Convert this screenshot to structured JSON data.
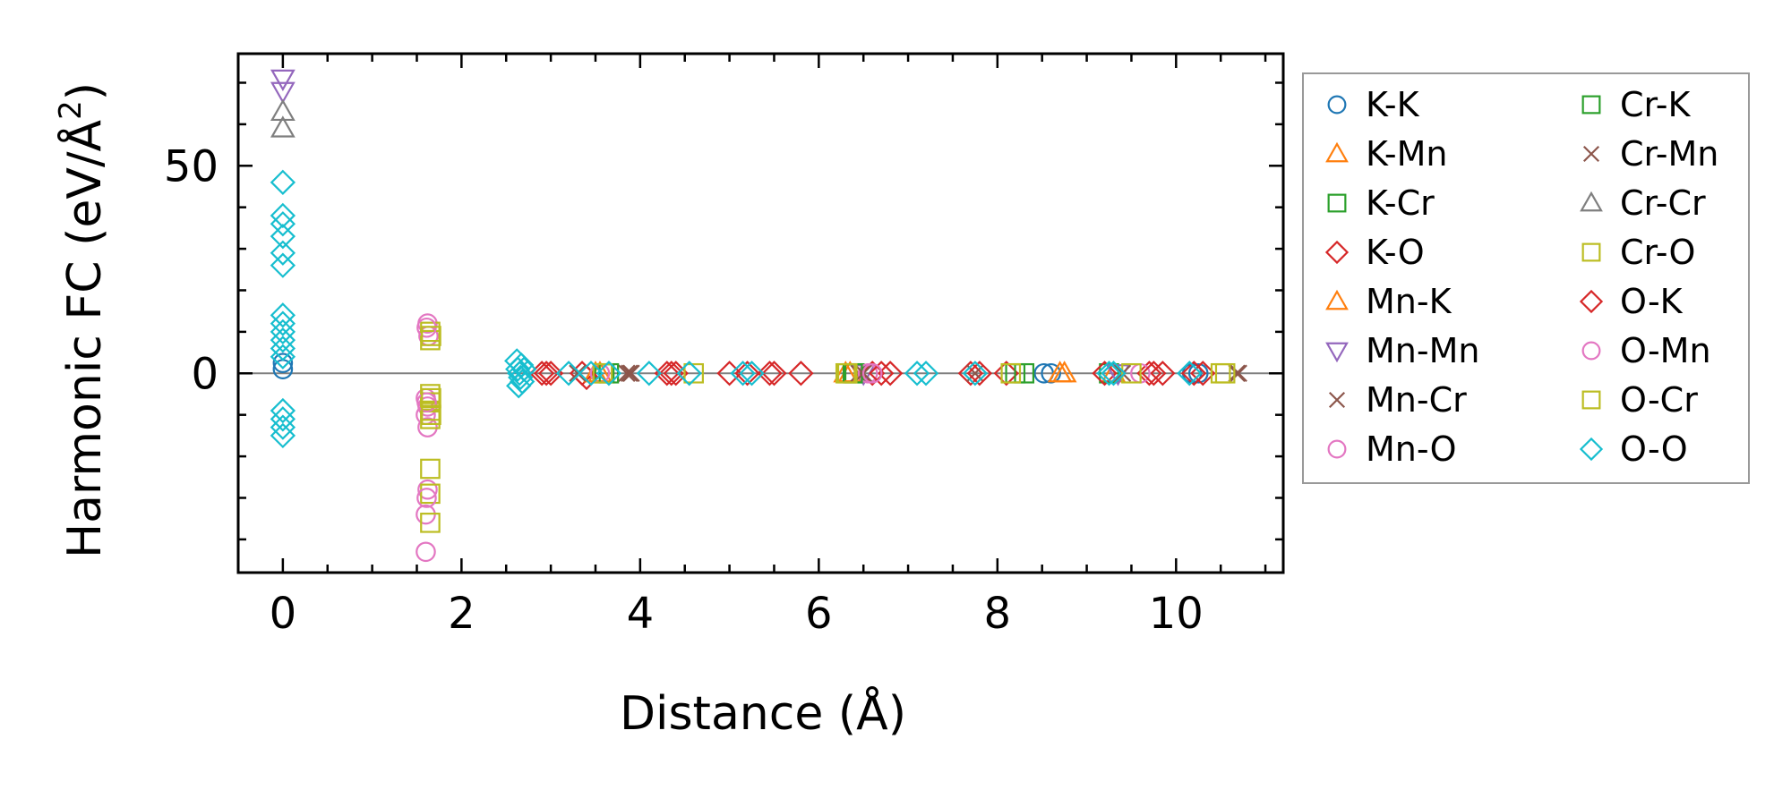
{
  "chart_data": {
    "type": "scatter",
    "xlabel": "Distance (Å)",
    "ylabel_main": "Harmonic FC (eV/Å",
    "ylabel_sup": "2",
    "ylabel_close": ")",
    "xlim": [
      -0.5,
      11.2
    ],
    "ylim": [
      -48,
      77
    ],
    "xticks": [
      0,
      2,
      4,
      6,
      8,
      10
    ],
    "xtick_labels": [
      "0",
      "2",
      "4",
      "6",
      "8",
      "10"
    ],
    "yticks": [
      0,
      50
    ],
    "ytick_labels": [
      "0",
      "50"
    ],
    "minor_x_step": 0.5,
    "minor_y_step": 10,
    "zero_line": true,
    "legend_position": "outside-right",
    "series": [
      {
        "name": "K-K",
        "marker": "circle",
        "color": "#1f77b4",
        "points": [
          [
            0,
            1
          ],
          [
            0,
            2.5
          ],
          [
            8.52,
            0
          ],
          [
            8.6,
            0
          ],
          [
            10.18,
            0
          ],
          [
            10.25,
            0
          ]
        ]
      },
      {
        "name": "K-Mn",
        "marker": "triangle-up",
        "color": "#ff7f0e",
        "points": [
          [
            3.55,
            0
          ],
          [
            6.35,
            0
          ],
          [
            8.75,
            0
          ],
          [
            9.3,
            0
          ]
        ]
      },
      {
        "name": "K-Cr",
        "marker": "square",
        "color": "#2ca02c",
        "points": [
          [
            3.6,
            0
          ],
          [
            6.4,
            0
          ],
          [
            8.2,
            0
          ],
          [
            9.25,
            0
          ]
        ]
      },
      {
        "name": "K-O",
        "marker": "diamond",
        "color": "#d62728",
        "points": [
          [
            2.9,
            0
          ],
          [
            3.0,
            0
          ],
          [
            3.35,
            0
          ],
          [
            3.4,
            -1
          ],
          [
            4.35,
            0
          ],
          [
            4.4,
            0
          ],
          [
            5.0,
            0
          ],
          [
            5.2,
            0
          ],
          [
            5.5,
            0
          ],
          [
            5.8,
            0
          ],
          [
            6.6,
            0
          ],
          [
            6.8,
            0
          ],
          [
            7.7,
            0
          ],
          [
            8.1,
            0
          ],
          [
            9.2,
            0
          ],
          [
            9.7,
            0
          ],
          [
            9.85,
            0
          ],
          [
            10.3,
            0
          ]
        ]
      },
      {
        "name": "Mn-K",
        "marker": "triangle-up",
        "color": "#ff7f0e",
        "points": [
          [
            3.5,
            0
          ],
          [
            6.3,
            0
          ],
          [
            8.7,
            0
          ]
        ]
      },
      {
        "name": "Mn-Mn",
        "marker": "triangle-down",
        "color": "#9467bd",
        "points": [
          [
            0,
            71
          ],
          [
            0,
            68
          ],
          [
            6.5,
            0
          ],
          [
            9.35,
            0
          ]
        ]
      },
      {
        "name": "Mn-Cr",
        "marker": "x",
        "color": "#8c564b",
        "points": [
          [
            3.3,
            0
          ],
          [
            3.85,
            0
          ],
          [
            3.9,
            0
          ],
          [
            6.45,
            0
          ],
          [
            7.75,
            0
          ],
          [
            9.4,
            0
          ],
          [
            10.7,
            0
          ]
        ]
      },
      {
        "name": "Mn-O",
        "marker": "circle",
        "color": "#e377c2",
        "points": [
          [
            1.62,
            12
          ],
          [
            1.63,
            9
          ],
          [
            1.6,
            -6
          ],
          [
            1.62,
            -8
          ],
          [
            1.6,
            -10
          ],
          [
            1.62,
            -13
          ],
          [
            1.62,
            -28
          ],
          [
            1.6,
            -34
          ],
          [
            1.6,
            -43
          ],
          [
            3.55,
            0
          ],
          [
            6.55,
            0
          ],
          [
            9.6,
            0
          ]
        ]
      },
      {
        "name": "Cr-K",
        "marker": "square",
        "color": "#2ca02c",
        "points": [
          [
            3.65,
            0
          ],
          [
            6.38,
            0
          ],
          [
            8.3,
            0
          ]
        ]
      },
      {
        "name": "Cr-Mn",
        "marker": "x",
        "color": "#8c564b",
        "points": [
          [
            3.88,
            0
          ],
          [
            6.5,
            0
          ],
          [
            10.68,
            0
          ]
        ]
      },
      {
        "name": "Cr-Cr",
        "marker": "triangle-up",
        "color": "#7f7f7f",
        "points": [
          [
            0,
            63
          ],
          [
            0,
            59
          ]
        ]
      },
      {
        "name": "Cr-O",
        "marker": "square",
        "color": "#bcbd22",
        "points": [
          [
            1.65,
            10
          ],
          [
            1.65,
            8
          ],
          [
            1.65,
            -5
          ],
          [
            1.65,
            -7
          ],
          [
            1.65,
            -9
          ],
          [
            1.65,
            -11
          ],
          [
            1.65,
            -23
          ],
          [
            1.65,
            -29
          ],
          [
            1.65,
            -36
          ],
          [
            3.58,
            0
          ],
          [
            4.6,
            0
          ],
          [
            6.3,
            0
          ],
          [
            8.15,
            0
          ],
          [
            9.5,
            0
          ],
          [
            10.5,
            0
          ]
        ]
      },
      {
        "name": "O-K",
        "marker": "diamond",
        "color": "#d62728",
        "points": [
          [
            2.95,
            0
          ],
          [
            4.3,
            0
          ],
          [
            5.45,
            0
          ],
          [
            6.7,
            0
          ],
          [
            7.8,
            0
          ],
          [
            9.75,
            0
          ],
          [
            10.2,
            0
          ]
        ]
      },
      {
        "name": "O-Mn",
        "marker": "circle",
        "color": "#e377c2",
        "points": [
          [
            1.61,
            11
          ],
          [
            1.61,
            -7
          ],
          [
            1.61,
            -30
          ],
          [
            6.6,
            0
          ]
        ]
      },
      {
        "name": "O-Cr",
        "marker": "square",
        "color": "#bcbd22",
        "points": [
          [
            1.66,
            9
          ],
          [
            1.66,
            -6
          ],
          [
            1.66,
            -10
          ],
          [
            6.32,
            0
          ],
          [
            10.55,
            0
          ]
        ]
      },
      {
        "name": "O-O",
        "marker": "diamond",
        "color": "#17becf",
        "points": [
          [
            0,
            46
          ],
          [
            0,
            38
          ],
          [
            0,
            36
          ],
          [
            0,
            33
          ],
          [
            0,
            29
          ],
          [
            0,
            26
          ],
          [
            0,
            14
          ],
          [
            0,
            12
          ],
          [
            0,
            10
          ],
          [
            0,
            8
          ],
          [
            0,
            6
          ],
          [
            0,
            4
          ],
          [
            0,
            -9
          ],
          [
            0,
            -11
          ],
          [
            0,
            -13
          ],
          [
            0,
            -15
          ],
          [
            2.62,
            3
          ],
          [
            2.63,
            1
          ],
          [
            2.65,
            0
          ],
          [
            2.66,
            -1
          ],
          [
            2.68,
            -2
          ],
          [
            2.64,
            -3
          ],
          [
            2.7,
            1
          ],
          [
            2.67,
            2
          ],
          [
            3.2,
            0
          ],
          [
            3.45,
            0
          ],
          [
            3.65,
            0
          ],
          [
            4.1,
            0
          ],
          [
            4.55,
            0
          ],
          [
            5.15,
            0
          ],
          [
            5.25,
            0
          ],
          [
            7.1,
            0
          ],
          [
            7.2,
            0
          ],
          [
            7.75,
            0
          ],
          [
            9.25,
            0
          ],
          [
            9.3,
            0
          ],
          [
            10.15,
            0
          ]
        ]
      }
    ]
  }
}
